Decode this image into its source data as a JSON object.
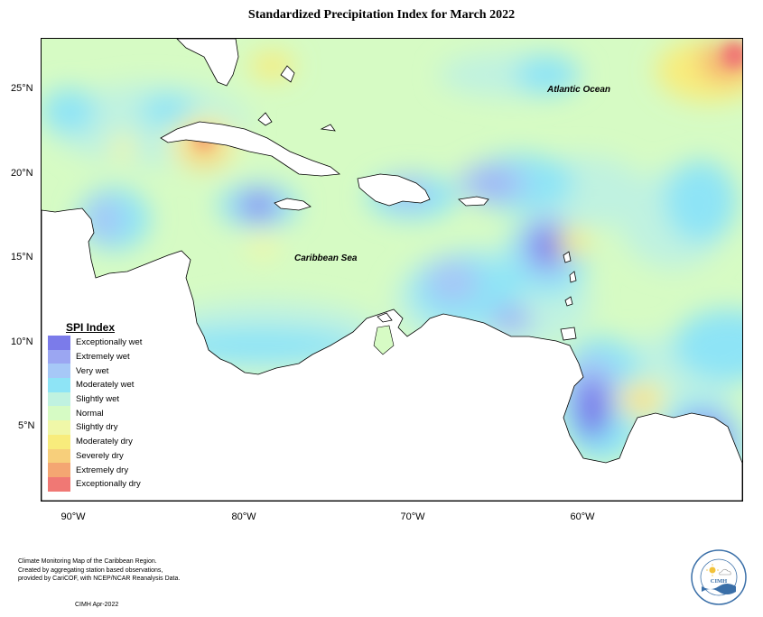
{
  "title": "Standardized Precipitation Index for March 2022",
  "labels": {
    "atlantic": "Atlantic Ocean",
    "caribbean": "Caribbean Sea"
  },
  "axes": {
    "latitude": [
      "25°N",
      "20°N",
      "15°N",
      "10°N",
      "5°N"
    ],
    "longitude": [
      "90°W",
      "80°W",
      "70°W",
      "60°W"
    ]
  },
  "legend": {
    "title": "SPI Index",
    "items": [
      {
        "label": "Exceptionally wet",
        "color": "#7b7bea"
      },
      {
        "label": "Extremely wet",
        "color": "#9ba6f2"
      },
      {
        "label": "Very wet",
        "color": "#a6c8f7"
      },
      {
        "label": "Moderately wet",
        "color": "#8ee4f6"
      },
      {
        "label": "Slightly wet",
        "color": "#c0f2e0"
      },
      {
        "label": "Normal",
        "color": "#d6fbc4"
      },
      {
        "label": "Slightly dry",
        "color": "#f0f7a8"
      },
      {
        "label": "Moderately dry",
        "color": "#f8ec7c"
      },
      {
        "label": "Severely dry",
        "color": "#f7cf7b"
      },
      {
        "label": "Extremely dry",
        "color": "#f4a672"
      },
      {
        "label": "Exceptionally dry",
        "color": "#f07874"
      }
    ]
  },
  "footer": {
    "lines": [
      "Climate Monitoring Map of the Caribbean Region.",
      "Created by aggregating station based observations,",
      "provided by CariCOF, with NCEP/NCAR Reanalysis Data."
    ],
    "credit": "CIMH Apr-2022"
  },
  "logo": {
    "text": "CIMH"
  }
}
